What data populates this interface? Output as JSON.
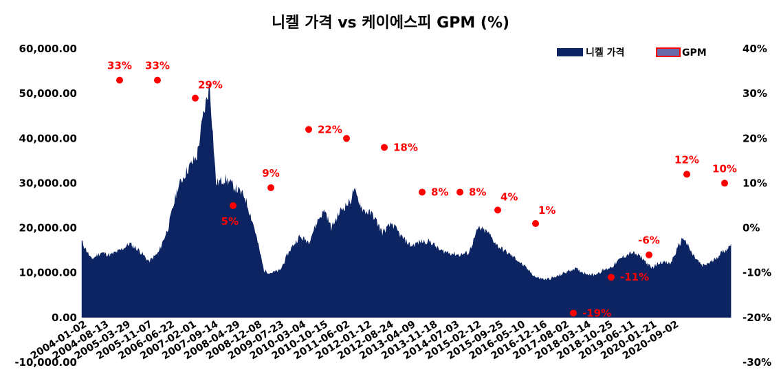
{
  "chart_data": {
    "type": "area",
    "title": "니켈 가격 vs 케이에스피 GPM (%)",
    "legend": {
      "position": "top-right"
    },
    "grid": false,
    "colors": {
      "area": "#0c2461",
      "gpm_point": "#ff0000",
      "gpm_label": "#ff0000",
      "gpm_legend_border": "#ff0000",
      "gpm_legend_fill": "#6a6aa8"
    },
    "y_left": {
      "ylim": [
        -10000,
        60000
      ],
      "ticks": [
        -10000,
        0,
        10000,
        20000,
        30000,
        40000,
        50000,
        60000
      ],
      "tick_labels": [
        "-10,000.00",
        "0.00",
        "10,000.00",
        "20,000.00",
        "30,000.00",
        "40,000.00",
        "50,000.00",
        "60,000.00"
      ]
    },
    "y_right": {
      "ylim": [
        -30,
        40
      ],
      "ticks": [
        -30,
        -20,
        -10,
        0,
        10,
        20,
        30,
        40
      ],
      "tick_labels": [
        "-30%",
        "-20%",
        "-10%",
        "0%",
        "10%",
        "20%",
        "30%",
        "40%"
      ]
    },
    "x_tick_labels": [
      "2004-01-02",
      "2004-08-13",
      "2005-03-29",
      "2005-11-07",
      "2006-06-22",
      "2007-02-01",
      "2007-09-14",
      "2008-04-29",
      "2008-12-08",
      "2009-07-23",
      "2010-03-04",
      "2010-10-15",
      "2011-06-02",
      "2012-01-12",
      "2012-08-24",
      "2013-04-09",
      "2013-11-18",
      "2014-07-03",
      "2015-02-12",
      "2015-09-25",
      "2016-05-10",
      "2016-12-16",
      "2017-08-02",
      "2018-03-14",
      "2018-10-25",
      "2019-06-11",
      "2020-01-21",
      "2020-09-02"
    ],
    "series": [
      {
        "name": "니켈 가격",
        "type": "area",
        "axis": "left",
        "x": [
          "2004-01",
          "2004-04",
          "2004-07",
          "2004-10",
          "2005-01",
          "2005-04",
          "2005-07",
          "2005-10",
          "2006-01",
          "2006-04",
          "2006-07",
          "2006-10",
          "2007-01",
          "2007-03",
          "2007-05",
          "2007-07",
          "2007-10",
          "2008-01",
          "2008-04",
          "2008-07",
          "2008-10",
          "2008-12",
          "2009-03",
          "2009-06",
          "2009-09",
          "2009-12",
          "2010-03",
          "2010-05",
          "2010-07",
          "2010-10",
          "2011-01",
          "2011-02",
          "2011-05",
          "2011-08",
          "2011-11",
          "2012-02",
          "2012-05",
          "2012-08",
          "2012-11",
          "2013-02",
          "2013-05",
          "2013-08",
          "2013-11",
          "2014-02",
          "2014-05",
          "2014-08",
          "2014-11",
          "2015-02",
          "2015-05",
          "2015-08",
          "2015-11",
          "2016-02",
          "2016-05",
          "2016-08",
          "2016-11",
          "2017-02",
          "2017-05",
          "2017-08",
          "2017-11",
          "2018-02",
          "2018-05",
          "2018-08",
          "2018-11",
          "2019-02",
          "2019-05",
          "2019-08",
          "2019-09",
          "2019-12",
          "2020-03",
          "2020-06",
          "2020-09",
          "2020-11",
          "2020-12"
        ],
        "values": [
          17000,
          13000,
          14500,
          14000,
          15000,
          16500,
          15000,
          12500,
          14500,
          20000,
          29000,
          33000,
          36000,
          45000,
          52000,
          30000,
          31000,
          29000,
          27000,
          20000,
          10500,
          10000,
          10500,
          15000,
          18000,
          17000,
          22000,
          24000,
          20000,
          24000,
          26000,
          28500,
          24000,
          23000,
          19000,
          21000,
          18000,
          16000,
          17000,
          17000,
          15000,
          14500,
          14000,
          14500,
          20000,
          19000,
          16000,
          14500,
          13000,
          11000,
          9000,
          8500,
          9000,
          10000,
          11000,
          10000,
          9500,
          10500,
          11500,
          13500,
          14500,
          13500,
          11000,
          12500,
          12000,
          16500,
          18000,
          14000,
          11500,
          12500,
          14500,
          15500,
          16500
        ]
      },
      {
        "name": "GPM",
        "type": "scatter",
        "axis": "right",
        "x": [
          "2004",
          "2005",
          "2006",
          "2007",
          "2008",
          "2009",
          "2010",
          "2011",
          "2012",
          "2013",
          "2014",
          "2015",
          "2016",
          "2017",
          "2018",
          "2019",
          "2020"
        ],
        "values": [
          33,
          33,
          29,
          5,
          9,
          22,
          20,
          18,
          8,
          8,
          4,
          1,
          -19,
          -11,
          -6,
          12,
          10
        ],
        "labels": [
          "33%",
          "33%",
          "29%",
          "5%",
          "9%",
          "22%",
          "",
          "18%",
          "8%",
          "8%",
          "4%",
          "1%",
          "-19%",
          "-11%",
          "-6%",
          "12%",
          "10%"
        ],
        "label_positions": [
          "above",
          "above",
          "above-right",
          "below",
          "above",
          "right",
          "none",
          "right",
          "right",
          "right",
          "above-right",
          "above-right",
          "right",
          "right",
          "above",
          "above",
          "above"
        ]
      }
    ]
  }
}
